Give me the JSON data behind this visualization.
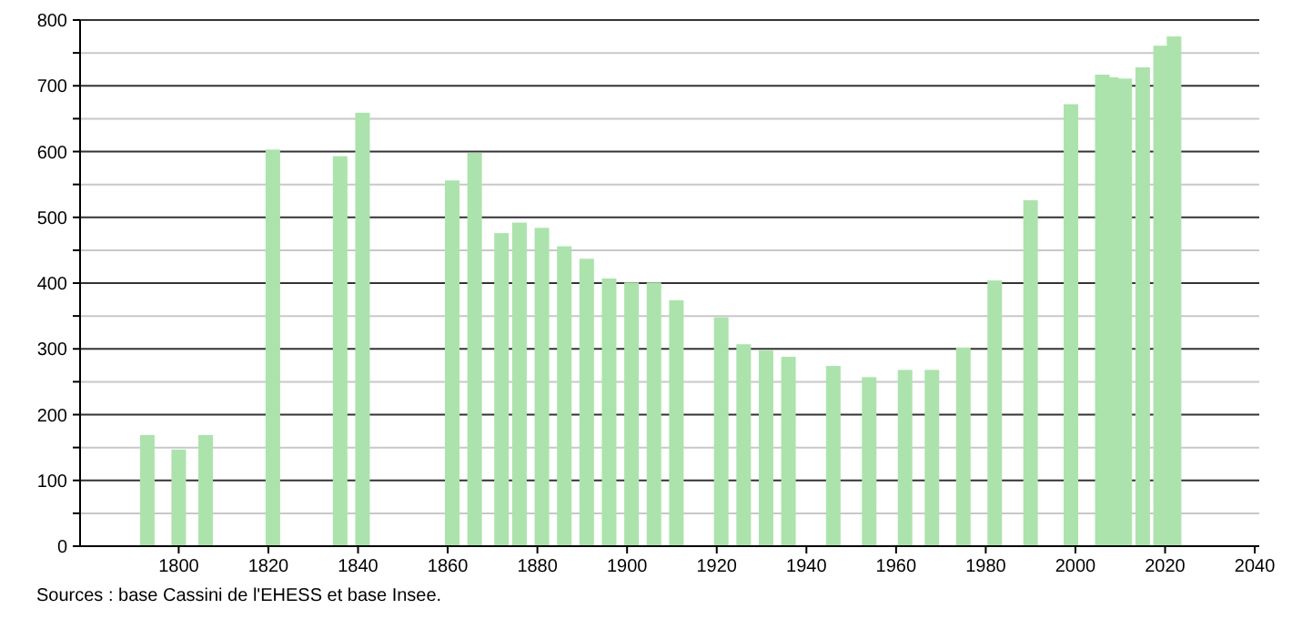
{
  "chart_data": {
    "type": "bar",
    "x": [
      1793,
      1800,
      1806,
      1821,
      1836,
      1841,
      1861,
      1866,
      1872,
      1876,
      1881,
      1886,
      1891,
      1896,
      1901,
      1906,
      1911,
      1921,
      1926,
      1931,
      1936,
      1946,
      1954,
      1962,
      1968,
      1975,
      1982,
      1990,
      1999,
      2006,
      2008,
      2011,
      2015,
      2019,
      2022
    ],
    "values": [
      169,
      147,
      169,
      603,
      593,
      659,
      556,
      598,
      476,
      492,
      484,
      456,
      437,
      407,
      401,
      401,
      374,
      348,
      307,
      298,
      288,
      274,
      257,
      268,
      268,
      302,
      404,
      526,
      672,
      717,
      713,
      711,
      728,
      761,
      775
    ],
    "color": "#ace3ac",
    "xlim": [
      1778,
      2041
    ],
    "xticks": [
      1800,
      1820,
      1840,
      1860,
      1880,
      1900,
      1920,
      1940,
      1960,
      1980,
      2000,
      2020,
      2040
    ],
    "ylim": [
      0,
      800
    ],
    "yticks": [
      0,
      {
        "value": 50,
        "label": null
      },
      100,
      {
        "value": 150,
        "label": null
      },
      200,
      {
        "value": 250,
        "label": null
      },
      300,
      {
        "value": 350,
        "label": null
      },
      400,
      {
        "value": 450,
        "label": null
      },
      500,
      {
        "value": 550,
        "label": null
      },
      600,
      {
        "value": 650,
        "label": null
      },
      700,
      {
        "value": 750,
        "label": null
      },
      800
    ],
    "grid": "y",
    "annotations": [
      "Sources : base Cassini de l'EHESS et base Insee."
    ]
  }
}
